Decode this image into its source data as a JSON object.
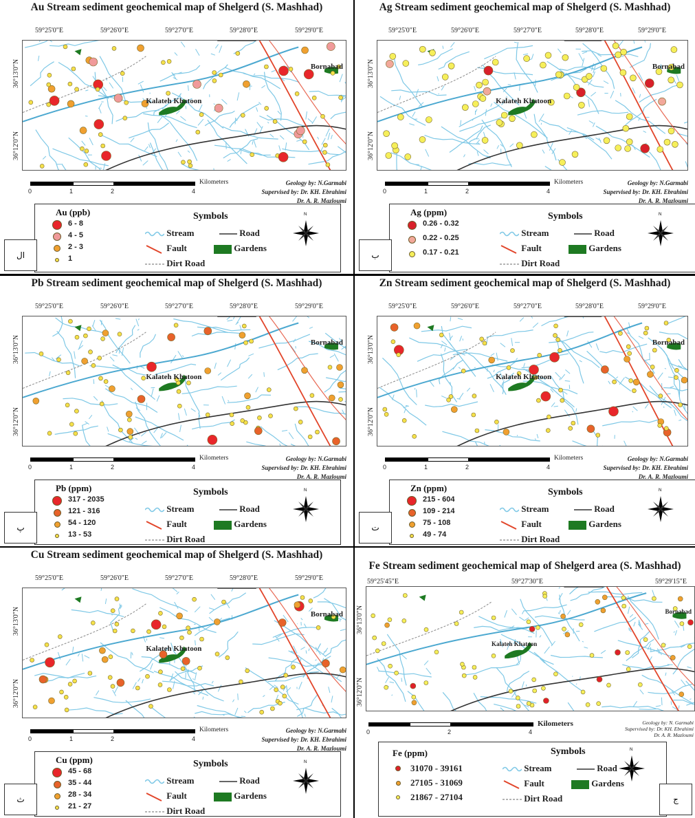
{
  "panels": [
    {
      "id": "au",
      "title": "Au Stream sediment geochemical map of Shelgerd (S. Mashhad)",
      "lon_labels": [
        "59°25'0\"E",
        "59°26'0\"E",
        "59°27'0\"E",
        "59°28'0\"E",
        "59°29'0\"E"
      ],
      "lat_labels": [
        "36°13'0\"N",
        "36°12'0\"N"
      ],
      "place_labels": [
        "Kalateh Khatoon",
        "Bornabad"
      ],
      "scale_ticks": [
        "0",
        "1",
        "2",
        "4"
      ],
      "scale_unit": "Kilometers",
      "credits": [
        "Geology by: N.Garmabi",
        "Supervised by: Dr. KH. Ebrahimi",
        "Dr. A. R. Mazloumi"
      ],
      "legend_title": "Au (ppb)",
      "classes": [
        {
          "label": "6 - 8",
          "color": "#e8262a",
          "size": 14
        },
        {
          "label": "4 - 5",
          "color": "#f09a9a",
          "size": 12
        },
        {
          "label": "2 - 3",
          "color": "#f0a030",
          "size": 10
        },
        {
          "label": "1",
          "color": "#f5e14a",
          "size": 6
        }
      ],
      "symbols_title": "Symbols",
      "symbols": {
        "stream": "Stream",
        "road": "Road",
        "fault": "Fault",
        "gardens": "Gardens",
        "dirt_road": "Dirt Road"
      },
      "tag": "ال"
    },
    {
      "id": "ag",
      "title": "Ag Stream sediment geochemical map of Shelgerd (S. Mashhad)",
      "lon_labels": [
        "59°25'0\"E",
        "59°26'0\"E",
        "59°27'0\"E",
        "59°28'0\"E",
        "59°29'0\"E"
      ],
      "lat_labels": [
        "36°13'0\"N",
        "36°12'0\"N"
      ],
      "place_labels": [
        "Kalateh Khatoon",
        "Bornabad"
      ],
      "scale_ticks": [
        "0",
        "1",
        "2",
        "4"
      ],
      "scale_unit": "Kilometers",
      "credits": [
        "Geology by: N.Garmabi",
        "Supervised by: Dr. KH. Ebrahimi",
        "Dr. A. R. Mazloumi"
      ],
      "legend_title": "Ag (ppm)",
      "classes": [
        {
          "label": "0.26 - 0.32",
          "color": "#d8202a",
          "size": 13
        },
        {
          "label": "0.22 - 0.25",
          "color": "#f2a89a",
          "size": 11
        },
        {
          "label": "0.17 - 0.21",
          "color": "#f6ef5a",
          "size": 9
        }
      ],
      "symbols_title": "Symbols",
      "symbols": {
        "stream": "Stream",
        "road": "Road",
        "fault": "Fault",
        "gardens": "Gardens",
        "dirt_road": "Dirt Road"
      },
      "tag": "ب"
    },
    {
      "id": "pb",
      "title": "Pb Stream sediment geochemical map of Shelgerd (S. Mashhad)",
      "lon_labels": [
        "59°25'0\"E",
        "59°26'0\"E",
        "59°27'0\"E",
        "59°28'0\"E",
        "59°29'0\"E"
      ],
      "lat_labels": [
        "36°13'0\"N",
        "36°12'0\"N"
      ],
      "place_labels": [
        "Kalateh Khatoon",
        "Bornabad"
      ],
      "scale_ticks": [
        "0",
        "1",
        "2",
        "4"
      ],
      "scale_unit": "Kilometers",
      "credits": [
        "Geology by: N.Garmabi",
        "Supervised by: Dr. KH. Ebrahimi",
        "Dr. A. R. Mazloumi"
      ],
      "legend_title": "Pb (ppm)",
      "classes": [
        {
          "label": "317 - 2035",
          "color": "#e8262a",
          "size": 14
        },
        {
          "label": "121 - 316",
          "color": "#e8622a",
          "size": 11
        },
        {
          "label": "54 - 120",
          "color": "#f0a030",
          "size": 9
        },
        {
          "label": "13 - 53",
          "color": "#f5e14a",
          "size": 6
        }
      ],
      "symbols_title": "Symbols",
      "symbols": {
        "stream": "Stream",
        "road": "Road",
        "fault": "Fault",
        "gardens": "Gardens",
        "dirt_road": "Dirt Road"
      },
      "tag": "پ"
    },
    {
      "id": "zn",
      "title": "Zn Stream sediment geochemical map of Shelgerd (S. Mashhad)",
      "lon_labels": [
        "59°25'0\"E",
        "59°26'0\"E",
        "59°27'0\"E",
        "59°28'0\"E",
        "59°29'0\"E"
      ],
      "lat_labels": [
        "36°13'0\"N",
        "36°12'0\"N"
      ],
      "place_labels": [
        "Kalateh Khatoon",
        "Bornabad"
      ],
      "scale_ticks": [
        "0",
        "1",
        "2",
        "4"
      ],
      "scale_unit": "Kilometers",
      "credits": [
        "Geology by: N.Garmabi",
        "Supervised by: Dr. KH. Ebrahimi",
        "Dr. A. R. Mazloumi"
      ],
      "legend_title": "Zn (ppm)",
      "classes": [
        {
          "label": "215 - 604",
          "color": "#e8262a",
          "size": 14
        },
        {
          "label": "109 - 214",
          "color": "#e8622a",
          "size": 11
        },
        {
          "label": "75 - 108",
          "color": "#f0a030",
          "size": 9
        },
        {
          "label": "49 - 74",
          "color": "#f5e14a",
          "size": 6
        }
      ],
      "symbols_title": "Symbols",
      "symbols": {
        "stream": "Stream",
        "road": "Road",
        "fault": "Fault",
        "gardens": "Gardens",
        "dirt_road": "Dirt Road"
      },
      "tag": "ت"
    },
    {
      "id": "cu",
      "title": "Cu Stream sediment geochemical map of Shelgerd (S. Mashhad)",
      "lon_labels": [
        "59°25'0\"E",
        "59°26'0\"E",
        "59°27'0\"E",
        "59°28'0\"E",
        "59°29'0\"E"
      ],
      "lat_labels": [
        "36°13'0\"N",
        "36°12'0\"N"
      ],
      "place_labels": [
        "Kalateh Khatoon",
        "Bornabad"
      ],
      "scale_ticks": [
        "0",
        "1",
        "2",
        "4"
      ],
      "scale_unit": "Kilometers",
      "credits": [
        "Geology by: N.Garmabi",
        "Supervised by: Dr. KH. Ebrahimi",
        "Dr. A. R. Mazloumi"
      ],
      "legend_title": "Cu (ppm)",
      "classes": [
        {
          "label": "45 - 68",
          "color": "#e8262a",
          "size": 14
        },
        {
          "label": "35 - 44",
          "color": "#e8622a",
          "size": 11
        },
        {
          "label": "28 - 34",
          "color": "#f0a030",
          "size": 9
        },
        {
          "label": "21 - 27",
          "color": "#f5e14a",
          "size": 6
        }
      ],
      "symbols_title": "Symbols",
      "symbols": {
        "stream": "Stream",
        "road": "Road",
        "fault": "Fault",
        "gardens": "Gardens",
        "dirt_road": "Dirt Road"
      },
      "tag": "ث"
    },
    {
      "id": "fe",
      "title": "Fe Stream sediment geochemical map of Shelgerd area (S. Mashhad)",
      "lon_labels": [
        "59°25'45\"E",
        "59°27'30\"E",
        "59°29'15\"E"
      ],
      "lat_labels": [
        "36°13'0\"N",
        "36°12'0\"N"
      ],
      "place_labels": [
        "Kalateh Khatoon",
        "Bornabad"
      ],
      "scale_ticks": [
        "0",
        "2",
        "4"
      ],
      "scale_unit": "Kilometers",
      "credits": [
        "Geology by: N. Garmabi",
        "Supervised by: Dr. KH. Ebrahimi",
        "Dr. A. R. Mazloumi"
      ],
      "legend_title": "Fe (ppm)",
      "classes": [
        {
          "label": "31070 - 39161",
          "color": "#e0202a",
          "size": 8
        },
        {
          "label": "27105 - 31069",
          "color": "#f0a030",
          "size": 7
        },
        {
          "label": "21867 - 27104",
          "color": "#f6ef5a",
          "size": 6
        }
      ],
      "symbols_title": "Symbols",
      "symbols": {
        "stream": "Stream",
        "road": "Road",
        "fault": "Fault",
        "gardens": "Gardens",
        "dirt_road": "Dirt Road"
      },
      "tag": "ج"
    }
  ],
  "colors": {
    "stream": "#7ec8e6",
    "fault": "#e2452a",
    "road": "#333333",
    "dirt_road": "#888888",
    "gardens": "#1e7a22"
  }
}
